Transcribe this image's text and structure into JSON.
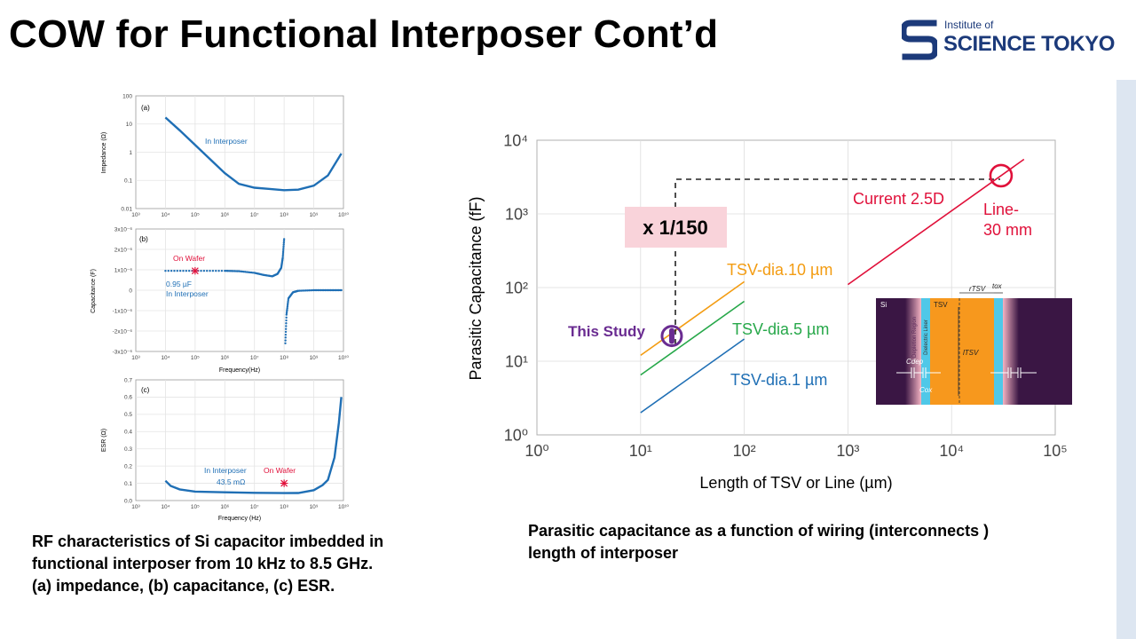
{
  "slide": {
    "title": "COW for Functional Interposer Cont’d",
    "logo": {
      "small": "Institute of",
      "big": "SCIENCE TOKYO",
      "brand_color": "#1c3a7a"
    },
    "caption_left": [
      "RF characteristics of Si capacitor imbedded in",
      "functional interposer from 10 kHz to 8.5 GHz.",
      "(a) impedance, (b) capacitance, (c) ESR."
    ],
    "caption_right": [
      "Parasitic capacitance as a function of wiring (interconnects )",
      "length of interposer"
    ]
  },
  "chart_data": [
    {
      "type": "line",
      "panel": "(a)",
      "ylabel": "Impedance (Ω)",
      "x_scale": "log",
      "y_scale": "log",
      "xlim": [
        1000,
        10000000000
      ],
      "ylim": [
        0.01,
        100
      ],
      "x_ticks": [
        "10³",
        "10⁴",
        "10⁵",
        "10⁶",
        "10⁷",
        "10⁸",
        "10⁹",
        "10¹⁰"
      ],
      "y_ticks": [
        "100",
        "10",
        "1",
        "0.1",
        "0.01"
      ],
      "annotation": "In Interposer",
      "series": [
        {
          "x": [
            10000,
            30000,
            100000,
            300000,
            1000000,
            3000000,
            10000000,
            30000000,
            100000000,
            300000000,
            1000000000,
            3000000000,
            8500000000
          ],
          "y": [
            17,
            6,
            1.8,
            0.6,
            0.18,
            0.075,
            0.055,
            0.05,
            0.045,
            0.047,
            0.065,
            0.15,
            0.9
          ]
        }
      ]
    },
    {
      "type": "line",
      "panel": "(b)",
      "ylabel": "Capacitance (F)",
      "xlabel": "Frequency(Hz)",
      "x_scale": "log",
      "xlim": [
        1000,
        10000000000
      ],
      "ylim": [
        -3e-06,
        3e-06
      ],
      "x_ticks": [
        "10³",
        "10⁴",
        "10⁵",
        "10⁶",
        "10⁷",
        "10⁸",
        "10⁹",
        "10¹⁰"
      ],
      "y_ticks": [
        "3x10⁻⁶",
        "2x10⁻⁶",
        "1x10⁻⁶",
        "0",
        "-1x10⁻⁶",
        "-2x10⁻⁶",
        "-3x10⁻⁶"
      ],
      "annotations": [
        "On Wafer",
        "0.95 µF",
        "In Interposer"
      ],
      "marker_on_wafer": {
        "x": 100000,
        "y": 9.5e-07
      },
      "series": [
        {
          "x": [
            10000,
            100000,
            1000000,
            3000000,
            10000000,
            20000000,
            40000000,
            60000000,
            80000000,
            90000000,
            100000000
          ],
          "y": [
            9.5e-07,
            9.5e-07,
            9.5e-07,
            9.3e-07,
            8.5e-07,
            7.5e-07,
            6.8e-07,
            8e-07,
            1.1e-06,
            1.6e-06,
            2.5e-06
          ]
        },
        {
          "x": [
            110000000,
            120000000,
            140000000,
            200000000,
            300000000,
            1000000000,
            3000000000,
            8500000000
          ],
          "y": [
            -2.6e-06,
            -1.2e-06,
            -4e-07,
            -1e-07,
            -3e-08,
            0,
            0,
            0
          ]
        }
      ]
    },
    {
      "type": "line",
      "panel": "(c)",
      "ylabel": "ESR (Ω)",
      "xlabel": "Frequency (Hz)",
      "x_scale": "log",
      "xlim": [
        1000,
        10000000000
      ],
      "ylim": [
        0,
        0.7
      ],
      "x_ticks": [
        "10³",
        "10⁴",
        "10⁵",
        "10⁶",
        "10⁷",
        "10⁸",
        "10⁹",
        "10¹⁰"
      ],
      "y_ticks": [
        "0.7",
        "0.6",
        "0.5",
        "0.4",
        "0.3",
        "0.2",
        "0.1",
        "0.0"
      ],
      "annotations": [
        "In Interposer",
        "43.5 mΩ",
        "On Wafer"
      ],
      "marker_on_wafer": {
        "x": 100000000,
        "y": 0.1
      },
      "series": [
        {
          "x": [
            10000,
            15000,
            30000,
            100000,
            1000000,
            10000000,
            100000000,
            300000000,
            1000000000,
            2000000000,
            3000000000,
            5000000000,
            7000000000,
            8500000000
          ],
          "y": [
            0.115,
            0.085,
            0.065,
            0.052,
            0.048,
            0.045,
            0.043,
            0.044,
            0.06,
            0.09,
            0.12,
            0.25,
            0.45,
            0.6
          ]
        }
      ]
    },
    {
      "type": "line",
      "panel": "main",
      "xlabel": "Length of TSV or Line (µm)",
      "ylabel": "Parasitic Capacitance (fF)",
      "x_scale": "log",
      "y_scale": "log",
      "xlim": [
        1,
        100000
      ],
      "ylim": [
        1,
        10000
      ],
      "x_ticks": [
        "10⁰",
        "10¹",
        "10²",
        "10³",
        "10⁴",
        "10⁵"
      ],
      "y_ticks": [
        "10⁴",
        "10³",
        "10²",
        "10¹",
        "10⁰"
      ],
      "series": [
        {
          "name": "TSV-dia.10 µm",
          "color": "#f39c12",
          "x": [
            10,
            100
          ],
          "y": [
            12,
            120
          ]
        },
        {
          "name": "TSV-dia.5 µm",
          "color": "#27a84a",
          "x": [
            10,
            100
          ],
          "y": [
            6.5,
            65
          ]
        },
        {
          "name": "TSV-dia.1 µm",
          "color": "#1f6fb5",
          "x": [
            10,
            100
          ],
          "y": [
            2,
            20
          ]
        },
        {
          "name": "Current 2.5D",
          "color": "#e0103a",
          "x": [
            1000,
            50000
          ],
          "y": [
            110,
            5500
          ]
        }
      ],
      "annotations": {
        "ratio": "x 1/150",
        "this_study": "This Study",
        "line_label_1": "Line-",
        "line_label_2": "30 mm",
        "this_study_point": {
          "x": 20,
          "y": 22
        },
        "line_30mm_point": {
          "x": 30000,
          "y": 3300
        }
      },
      "inset": {
        "labels": {
          "si": "Si",
          "dielectric_region": "Depletion Region",
          "dielectric_liner": "Dielectric Liner",
          "tsv": "TSV",
          "r_tsv": "rTSV",
          "t_ox": "tox",
          "l_tsv": "lTSV",
          "c_dep": "Cdep",
          "c_ox": "Cox"
        }
      }
    }
  ]
}
